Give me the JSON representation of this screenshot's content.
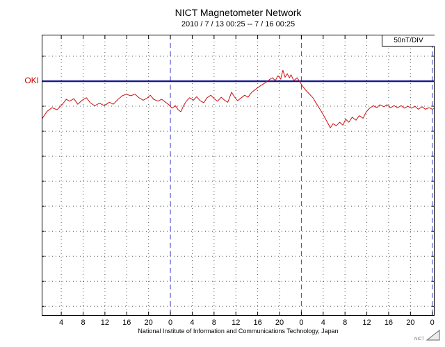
{
  "page": {
    "title": "NICT Magnetometer Network",
    "subtitle": "2010 / 7 / 13   00:25  --  7 / 16   00:25",
    "scale_label": "50nT/DIV",
    "footer": "National Institute of Information and Communications Technology, Japan",
    "logo_text": "NICT"
  },
  "station": {
    "label": "OKI",
    "color": "#cc0000"
  },
  "colors": {
    "trace": "#cc1111",
    "baseline": "#1b1b8f",
    "boundary": "#3b3bcc",
    "grid": "#555555",
    "border": "#000000",
    "background": "#ffffff"
  },
  "chart_data": {
    "type": "line",
    "title": "NICT Magnetometer Network",
    "subtitle": "2010 / 7 / 13 00:25 -- 7 / 16 00:25",
    "station": "OKI",
    "units": "nT",
    "units_per_div": 50,
    "scale_label": "50nT/DIV",
    "xlim_hours": [
      0,
      72
    ],
    "ylim_nT": [
      -469,
      93
    ],
    "baseline_nT": 0,
    "grid": "dotted",
    "x_ticks": [
      {
        "label": "4",
        "hour": 3.583,
        "boundary": false
      },
      {
        "label": "8",
        "hour": 7.583,
        "boundary": false
      },
      {
        "label": "12",
        "hour": 11.583,
        "boundary": false
      },
      {
        "label": "16",
        "hour": 15.583,
        "boundary": false
      },
      {
        "label": "20",
        "hour": 19.583,
        "boundary": false
      },
      {
        "label": "0",
        "hour": 23.583,
        "boundary": true
      },
      {
        "label": "4",
        "hour": 27.583,
        "boundary": false
      },
      {
        "label": "8",
        "hour": 31.583,
        "boundary": false
      },
      {
        "label": "12",
        "hour": 35.583,
        "boundary": false
      },
      {
        "label": "16",
        "hour": 39.583,
        "boundary": false
      },
      {
        "label": "20",
        "hour": 43.583,
        "boundary": false
      },
      {
        "label": "0",
        "hour": 47.583,
        "boundary": true
      },
      {
        "label": "4",
        "hour": 51.583,
        "boundary": false
      },
      {
        "label": "8",
        "hour": 55.583,
        "boundary": false
      },
      {
        "label": "12",
        "hour": 59.583,
        "boundary": false
      },
      {
        "label": "16",
        "hour": 63.583,
        "boundary": false
      },
      {
        "label": "20",
        "hour": 67.583,
        "boundary": false
      },
      {
        "label": "0",
        "hour": 71.583,
        "boundary": true
      }
    ],
    "series": [
      {
        "name": "OKI",
        "points": [
          [
            0,
            -76
          ],
          [
            1,
            -60
          ],
          [
            1.9,
            -53
          ],
          [
            2.8,
            -57
          ],
          [
            3.8,
            -46
          ],
          [
            4.5,
            -36
          ],
          [
            5.1,
            -40
          ],
          [
            5.9,
            -35
          ],
          [
            6.6,
            -46
          ],
          [
            7.4,
            -38
          ],
          [
            8.2,
            -33
          ],
          [
            8.9,
            -43
          ],
          [
            9.7,
            -49
          ],
          [
            10.6,
            -44
          ],
          [
            11.5,
            -49
          ],
          [
            12.4,
            -42
          ],
          [
            13.1,
            -46
          ],
          [
            14,
            -36
          ],
          [
            14.8,
            -29
          ],
          [
            15.5,
            -26
          ],
          [
            16.3,
            -29
          ],
          [
            17.1,
            -26
          ],
          [
            17.8,
            -33
          ],
          [
            18.6,
            -38
          ],
          [
            19.4,
            -33
          ],
          [
            19.9,
            -28
          ],
          [
            20.5,
            -36
          ],
          [
            21.3,
            -40
          ],
          [
            22,
            -36
          ],
          [
            22.7,
            -42
          ],
          [
            23.3,
            -47
          ],
          [
            23.9,
            -54
          ],
          [
            24.5,
            -49
          ],
          [
            25,
            -57
          ],
          [
            25.5,
            -61
          ],
          [
            26,
            -49
          ],
          [
            26.5,
            -40
          ],
          [
            27.1,
            -33
          ],
          [
            27.8,
            -38
          ],
          [
            28.4,
            -31
          ],
          [
            29,
            -39
          ],
          [
            29.7,
            -43
          ],
          [
            30.3,
            -33
          ],
          [
            31,
            -28
          ],
          [
            31.6,
            -35
          ],
          [
            32.2,
            -40
          ],
          [
            32.9,
            -32
          ],
          [
            33.5,
            -38
          ],
          [
            34.1,
            -42
          ],
          [
            34.8,
            -22
          ],
          [
            35.3,
            -31
          ],
          [
            35.9,
            -39
          ],
          [
            36.6,
            -33
          ],
          [
            37.2,
            -28
          ],
          [
            37.8,
            -32
          ],
          [
            38.5,
            -22
          ],
          [
            39.1,
            -17
          ],
          [
            39.7,
            -12
          ],
          [
            40.4,
            -7
          ],
          [
            41,
            -3
          ],
          [
            41.7,
            3
          ],
          [
            42.3,
            7
          ],
          [
            42.8,
            1
          ],
          [
            43.3,
            11
          ],
          [
            43.8,
            4
          ],
          [
            44.2,
            22
          ],
          [
            44.6,
            8
          ],
          [
            45,
            15
          ],
          [
            45.4,
            7
          ],
          [
            45.7,
            13
          ],
          [
            46.2,
            1
          ],
          [
            46.8,
            7
          ],
          [
            47.3,
            -1
          ],
          [
            47.8,
            -10
          ],
          [
            48.4,
            -18
          ],
          [
            49,
            -25
          ],
          [
            49.7,
            -33
          ],
          [
            50.3,
            -44
          ],
          [
            51,
            -56
          ],
          [
            51.6,
            -67
          ],
          [
            52.2,
            -79
          ],
          [
            52.9,
            -93
          ],
          [
            53.4,
            -85
          ],
          [
            54,
            -89
          ],
          [
            54.6,
            -82
          ],
          [
            55.2,
            -88
          ],
          [
            55.7,
            -76
          ],
          [
            56.3,
            -82
          ],
          [
            56.9,
            -72
          ],
          [
            57.6,
            -78
          ],
          [
            58.2,
            -69
          ],
          [
            58.9,
            -74
          ],
          [
            59.5,
            -61
          ],
          [
            60.1,
            -54
          ],
          [
            60.8,
            -49
          ],
          [
            61.4,
            -53
          ],
          [
            62,
            -47
          ],
          [
            62.7,
            -51
          ],
          [
            63.3,
            -47
          ],
          [
            63.9,
            -53
          ],
          [
            64.6,
            -49
          ],
          [
            65.2,
            -53
          ],
          [
            65.9,
            -49
          ],
          [
            66.5,
            -54
          ],
          [
            67.1,
            -50
          ],
          [
            67.8,
            -54
          ],
          [
            68.4,
            -50
          ],
          [
            69,
            -56
          ],
          [
            69.7,
            -51
          ],
          [
            70.3,
            -56
          ],
          [
            71,
            -53
          ],
          [
            71.6,
            -56
          ],
          [
            72,
            -54
          ]
        ]
      }
    ]
  }
}
